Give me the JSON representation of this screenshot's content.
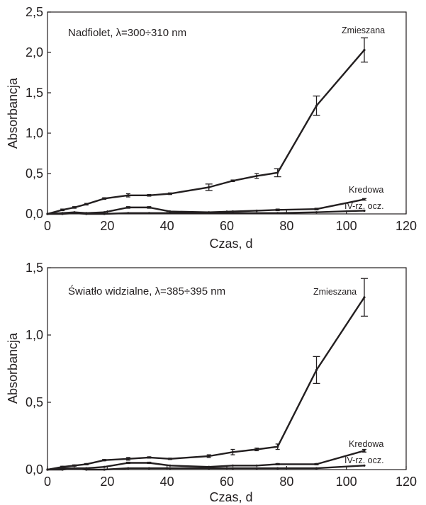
{
  "chart_data": [
    {
      "type": "line",
      "title": "Nadfiolet, λ=300÷310 nm",
      "xlabel": "Czas, d",
      "ylabel": "Absorbancja",
      "xlim": [
        0,
        120
      ],
      "ylim": [
        0,
        2.5
      ],
      "xticks": [
        0,
        20,
        40,
        60,
        80,
        100,
        120
      ],
      "yticks": [
        0,
        0.5,
        1.0,
        1.5,
        2.0,
        2.5
      ],
      "xtick_labels": [
        "0",
        "20",
        "40",
        "60",
        "80",
        "100",
        "120"
      ],
      "ytick_labels": [
        "0,0",
        "0,5",
        "1,0",
        "1,5",
        "2,0",
        "2,5"
      ],
      "grid": false,
      "legend": "none",
      "series": [
        {
          "name": "Zmieszana",
          "x": [
            0,
            5,
            9,
            13,
            19,
            27,
            34,
            41,
            54,
            62,
            70,
            77,
            90,
            106
          ],
          "y": [
            0,
            0.05,
            0.08,
            0.12,
            0.19,
            0.23,
            0.23,
            0.25,
            0.33,
            0.41,
            0.47,
            0.51,
            1.34,
            2.03
          ],
          "err": [
            0,
            0.01,
            0.01,
            0.01,
            0.01,
            0.02,
            0.01,
            0.01,
            0.04,
            0.01,
            0.03,
            0.05,
            0.12,
            0.15
          ]
        },
        {
          "name": "Kredowa",
          "x": [
            0,
            5,
            9,
            13,
            19,
            27,
            34,
            41,
            54,
            62,
            70,
            77,
            90,
            106
          ],
          "y": [
            0,
            0.01,
            0.02,
            0.01,
            0.02,
            0.08,
            0.08,
            0.03,
            0.02,
            0.03,
            0.04,
            0.05,
            0.06,
            0.18
          ],
          "err": [
            0,
            0,
            0,
            0,
            0,
            0.01,
            0.01,
            0,
            0,
            0,
            0,
            0.01,
            0.01,
            0.01
          ]
        },
        {
          "name": "IV-rz. ocz.",
          "x": [
            0,
            5,
            9,
            13,
            19,
            27,
            34,
            41,
            54,
            62,
            70,
            77,
            90,
            106
          ],
          "y": [
            0,
            0,
            0.01,
            0,
            0,
            0.01,
            0.01,
            0.01,
            0.01,
            0.01,
            0.01,
            0.01,
            0.02,
            0.04
          ],
          "err": [
            0,
            0,
            0,
            0,
            0,
            0,
            0,
            0,
            0,
            0,
            0,
            0,
            0,
            0
          ]
        }
      ]
    },
    {
      "type": "line",
      "title": "Światło widzialne, λ=385÷395 nm",
      "xlabel": "Czas, d",
      "ylabel": "Absorbancja",
      "xlim": [
        0,
        120
      ],
      "ylim": [
        0,
        1.5
      ],
      "xticks": [
        0,
        20,
        40,
        60,
        80,
        100,
        120
      ],
      "yticks": [
        0,
        0.5,
        1.0,
        1.5
      ],
      "xtick_labels": [
        "0",
        "20",
        "40",
        "60",
        "80",
        "100",
        "120"
      ],
      "ytick_labels": [
        "0,0",
        "0,5",
        "1,0",
        "1,5"
      ],
      "grid": false,
      "legend": "none",
      "series": [
        {
          "name": "Zmieszana",
          "x": [
            0,
            5,
            9,
            13,
            19,
            27,
            34,
            41,
            54,
            62,
            70,
            77,
            90,
            106
          ],
          "y": [
            0,
            0.02,
            0.03,
            0.04,
            0.07,
            0.08,
            0.09,
            0.08,
            0.1,
            0.13,
            0.15,
            0.17,
            0.74,
            1.28
          ],
          "err": [
            0,
            0.005,
            0.005,
            0.005,
            0.005,
            0.01,
            0.005,
            0.005,
            0.01,
            0.02,
            0.01,
            0.02,
            0.1,
            0.14
          ]
        },
        {
          "name": "Kredowa",
          "x": [
            0,
            5,
            9,
            13,
            19,
            27,
            34,
            41,
            54,
            62,
            70,
            77,
            90,
            106
          ],
          "y": [
            0,
            0.01,
            0.01,
            0.01,
            0.02,
            0.05,
            0.05,
            0.03,
            0.02,
            0.03,
            0.03,
            0.04,
            0.04,
            0.14
          ],
          "err": [
            0,
            0,
            0,
            0,
            0,
            0.005,
            0.005,
            0,
            0,
            0,
            0,
            0.005,
            0.005,
            0.01
          ]
        },
        {
          "name": "IV-rz. ocz.",
          "x": [
            0,
            5,
            9,
            13,
            19,
            27,
            34,
            41,
            54,
            62,
            70,
            77,
            90,
            106
          ],
          "y": [
            0,
            0,
            0.01,
            0,
            0,
            0.01,
            0.01,
            0.01,
            0.01,
            0.01,
            0.01,
            0.01,
            0.01,
            0.03
          ],
          "err": [
            0,
            0,
            0,
            0,
            0,
            0,
            0,
            0,
            0,
            0,
            0,
            0,
            0,
            0
          ]
        }
      ]
    }
  ]
}
